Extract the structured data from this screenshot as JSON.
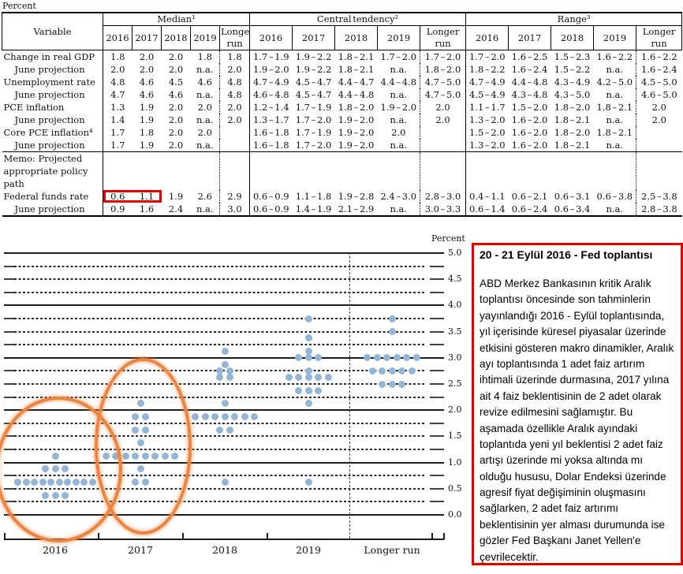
{
  "labels": {
    "percent_top": "Percent"
  },
  "table": {
    "variable_header": "Variable",
    "group_headers": [
      "Median¹",
      "Central tendency²",
      "Range³"
    ],
    "year_headers": [
      "2016",
      "2017",
      "2018",
      "2019",
      "Longer run"
    ],
    "memo_lines": [
      "Memo: Projected",
      "appropriate policy path"
    ],
    "rows": [
      {
        "label": "Change in real GDP",
        "indent": false,
        "gap": true,
        "median": [
          "1.8",
          "2.0",
          "2.0",
          "1.8",
          "1.8"
        ],
        "central": [
          "1.7 – 1.9",
          "1.9 – 2.2",
          "1.8 – 2.1",
          "1.7 – 2.0",
          "1.7 – 2.0"
        ],
        "range": [
          "1.7 – 2.0",
          "1.6 – 2.5",
          "1.5 – 2.3",
          "1.6 – 2.2",
          "1.6 – 2.2"
        ]
      },
      {
        "label": "June projection",
        "indent": true,
        "median": [
          "2.0",
          "2.0",
          "2.0",
          "n.a.",
          "2.0"
        ],
        "central": [
          "1.9 – 2.0",
          "1.9 – 2.2",
          "1.8 – 2.1",
          "n.a.",
          "1.8 – 2.0"
        ],
        "range": [
          "1.8 – 2.2",
          "1.6 – 2.4",
          "1.5 – 2.2",
          "n.a.",
          "1.6 – 2.4"
        ]
      },
      {
        "label": "Unemployment rate",
        "indent": false,
        "gap": true,
        "median": [
          "4.8",
          "4.6",
          "4.5",
          "4.6",
          "4.8"
        ],
        "central": [
          "4.7 – 4.9",
          "4.5 – 4.7",
          "4.4 – 4.7",
          "4.4 – 4.8",
          "4.7 – 5.0"
        ],
        "range": [
          "4.7 – 4.9",
          "4.4 – 4.8",
          "4.3 – 4.9",
          "4.2 – 5.0",
          "4.5 – 5.0"
        ]
      },
      {
        "label": "June projection",
        "indent": true,
        "median": [
          "4.7",
          "4.6",
          "4.6",
          "n.a.",
          "4.8"
        ],
        "central": [
          "4.6 – 4.8",
          "4.5 – 4.7",
          "4.4 – 4.8",
          "n.a.",
          "4.7 – 5.0"
        ],
        "range": [
          "4.5 – 4.9",
          "4.3 – 4.8",
          "4.3 – 5.0",
          "n.a.",
          "4.6 – 5.0"
        ]
      },
      {
        "label": "PCE inflation",
        "indent": false,
        "gap": true,
        "median": [
          "1.3",
          "1.9",
          "2.0",
          "2.0",
          "2.0"
        ],
        "central": [
          "1.2 – 1.4",
          "1.7 – 1.9",
          "1.8 – 2.0",
          "1.9 – 2.0",
          "2.0"
        ],
        "range": [
          "1.1 – 1.7",
          "1.5 – 2.0",
          "1.8 – 2.0",
          "1.8 – 2.1",
          "2.0"
        ]
      },
      {
        "label": "June projection",
        "indent": true,
        "median": [
          "1.4",
          "1.9",
          "2.0",
          "n.a.",
          "2.0"
        ],
        "central": [
          "1.3 – 1.7",
          "1.7 – 2.0",
          "1.9 – 2.0",
          "n.a.",
          "2.0"
        ],
        "range": [
          "1.3 – 2.0",
          "1.6 – 2.0",
          "1.8 – 2.1",
          "n.a.",
          "2.0"
        ]
      },
      {
        "label": "Core PCE inflation⁴",
        "indent": false,
        "gap": true,
        "median": [
          "1.7",
          "1.8",
          "2.0",
          "2.0",
          ""
        ],
        "central": [
          "1.6 – 1.8",
          "1.7 – 1.9",
          "1.9 – 2.0",
          "2.0",
          ""
        ],
        "range": [
          "1.5 – 2.0",
          "1.6 – 2.0",
          "1.8 – 2.0",
          "1.8 – 2.1",
          ""
        ]
      },
      {
        "label": "June projection",
        "indent": true,
        "median": [
          "1.7",
          "1.9",
          "2.0",
          "n.a.",
          ""
        ],
        "central": [
          "1.6 – 1.8",
          "1.7 – 2.0",
          "1.9 – 2.0",
          "n.a.",
          ""
        ],
        "range": [
          "1.3 – 2.0",
          "1.6 – 2.0",
          "1.8 – 2.1",
          "n.a.",
          ""
        ]
      },
      {
        "memo": true
      },
      {
        "label": "Federal funds rate",
        "indent": false,
        "highlight_median": [
          0,
          1
        ],
        "median": [
          "0.6",
          "1.1",
          "1.9",
          "2.6",
          "2.9"
        ],
        "central": [
          "0.6 – 0.9",
          "1.1 – 1.8",
          "1.9 – 2.8",
          "2.4 – 3.0",
          "2.8 – 3.0"
        ],
        "range": [
          "0.4 – 1.1",
          "0.6 – 2.1",
          "0.6 – 3.1",
          "0.6 – 3.8",
          "2.5 – 3.8"
        ]
      },
      {
        "label": "June projection",
        "indent": true,
        "last": true,
        "median": [
          "0.9",
          "1.6",
          "2.4",
          "n.a.",
          "3.0"
        ],
        "central": [
          "0.6 – 0.9",
          "1.4 – 1.9",
          "2.1 – 2.9",
          "n.a.",
          "3.0 – 3.3"
        ],
        "range": [
          "0.6 – 1.4",
          "0.6 – 2.4",
          "0.6 – 3.4",
          "n.a.",
          "2.8 – 3.8"
        ]
      }
    ]
  },
  "chart_data": {
    "type": "scatter",
    "title": "FOMC participants' assessments of appropriate monetary policy (dot plot)",
    "ylabel": "Percent",
    "ylim": [
      0.0,
      5.0
    ],
    "gridline_step": 0.25,
    "ytick_labels": [
      "5.0",
      "4.5",
      "4.0",
      "3.5",
      "3.0",
      "2.5",
      "2.0",
      "1.5",
      "1.0",
      "0.5",
      "0.0"
    ],
    "legend_position": "none",
    "grid": true,
    "categories": [
      "2016",
      "2017",
      "2018",
      "2019",
      "Longer run"
    ],
    "series": [
      {
        "name": "2016",
        "dots": [
          {
            "value": 1.125,
            "count": 1
          },
          {
            "value": 0.875,
            "count": 3
          },
          {
            "value": 0.625,
            "count": 10
          },
          {
            "value": 0.375,
            "count": 3
          }
        ]
      },
      {
        "name": "2017",
        "dots": [
          {
            "value": 2.125,
            "count": 1
          },
          {
            "value": 1.875,
            "count": 2
          },
          {
            "value": 1.625,
            "count": 2
          },
          {
            "value": 1.375,
            "count": 1
          },
          {
            "value": 1.125,
            "count": 8
          },
          {
            "value": 0.875,
            "count": 1
          },
          {
            "value": 0.625,
            "count": 2
          }
        ]
      },
      {
        "name": "2018",
        "dots": [
          {
            "value": 3.125,
            "count": 1
          },
          {
            "value": 2.875,
            "count": 1
          },
          {
            "value": 2.75,
            "count": 2
          },
          {
            "value": 2.625,
            "count": 2
          },
          {
            "value": 2.125,
            "count": 1
          },
          {
            "value": 1.875,
            "count": 7
          },
          {
            "value": 1.625,
            "count": 2
          },
          {
            "value": 0.625,
            "count": 1
          }
        ]
      },
      {
        "name": "2019",
        "dots": [
          {
            "value": 3.75,
            "count": 1
          },
          {
            "value": 3.375,
            "count": 1
          },
          {
            "value": 3.125,
            "count": 1
          },
          {
            "value": 3.0,
            "count": 3
          },
          {
            "value": 2.75,
            "count": 1
          },
          {
            "value": 2.625,
            "count": 5
          },
          {
            "value": 2.375,
            "count": 3
          },
          {
            "value": 2.125,
            "count": 1
          },
          {
            "value": 0.625,
            "count": 1
          }
        ]
      },
      {
        "name": "Longer run",
        "dots": [
          {
            "value": 3.75,
            "count": 1
          },
          {
            "value": 3.5,
            "count": 1
          },
          {
            "value": 3.0,
            "count": 6
          },
          {
            "value": 2.75,
            "count": 5
          },
          {
            "value": 2.5,
            "count": 3
          }
        ]
      }
    ],
    "annotations": {
      "circled_columns": [
        "2016",
        "2017"
      ]
    },
    "dot_color": "#93b5d8",
    "annotation_color": "#ec8440"
  },
  "note_panel": {
    "border_color": "#e60000",
    "title": "20 - 21 Eylül 2016 - Fed toplantısı",
    "body": "ABD Merkez Bankasının kritik Aralık toplantısı öncesinde son tahminlerin yayınlandığı 2016 - Eylül toplantısında, yıl içerisinde küresel piyasalar üzerinde etkisini gösteren makro dinamikler, Aralık ayı toplantısında 1 adet faiz artırım ihtimali üzerinde durmasına,  2017 yılına ait 4 faiz beklentisinin de 2 adet olarak revize edilmesini sağlamıştır. Bu aşamada özellikle Aralık ayındaki toplantıda yeni yıl beklentisi 2 adet faiz artışı üzerinde mi yoksa altında mı olduğu hususu, Dolar Endeksi üzerinde agresif fiyat değişiminin oluşmasını sağlarken, 2 adet faiz artırımı beklentisinin yer alması durumunda ise gözler Fed Başkanı Janet Yellen'e çevrilecektir."
  }
}
